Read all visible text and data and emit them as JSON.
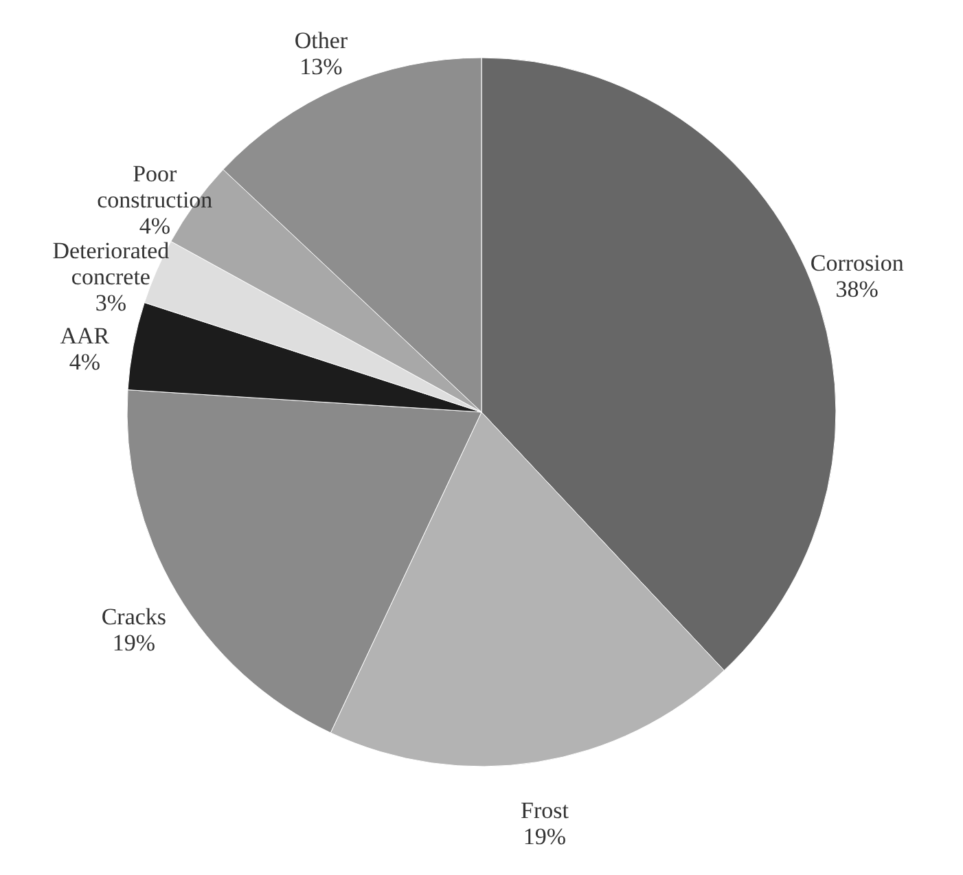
{
  "chart_data": {
    "type": "pie",
    "categories": [
      "Corrosion",
      "Frost",
      "Cracks",
      "AAR",
      "Deteriorated concrete",
      "Poor construction",
      "Other"
    ],
    "values": [
      38,
      19,
      19,
      4,
      3,
      4,
      13
    ],
    "value_labels": [
      "38%",
      "19%",
      "19%",
      "4%",
      "3%",
      "4%",
      "13%"
    ],
    "colors": [
      "#676767",
      "#b3b3b3",
      "#8a8a8a",
      "#1c1c1c",
      "#dedede",
      "#a8a8a8",
      "#8e8e8e"
    ]
  }
}
